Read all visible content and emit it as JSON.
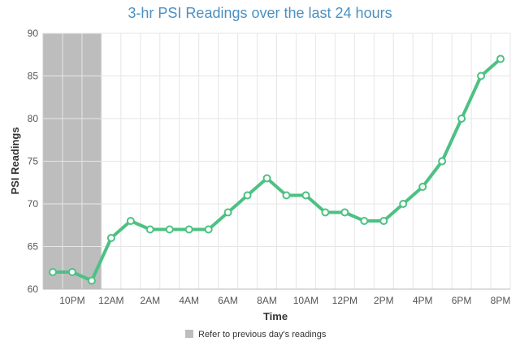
{
  "chart_data": {
    "type": "line",
    "title": "3-hr PSI Readings over the last 24 hours",
    "xlabel": "Time",
    "ylabel": "PSI Readings",
    "ylim": [
      60,
      90
    ],
    "yticks": [
      60,
      65,
      70,
      75,
      80,
      85,
      90
    ],
    "x": [
      "9PM",
      "10PM",
      "11PM",
      "12AM",
      "1AM",
      "2AM",
      "3AM",
      "4AM",
      "5AM",
      "6AM",
      "7AM",
      "8AM",
      "9AM",
      "10AM",
      "11AM",
      "12PM",
      "1PM",
      "2PM",
      "3PM",
      "4PM",
      "5PM",
      "6PM",
      "7PM",
      "8PM"
    ],
    "xtick_labels": [
      "10PM",
      "12AM",
      "2AM",
      "4AM",
      "6AM",
      "8AM",
      "10AM",
      "12PM",
      "2PM",
      "4PM",
      "6PM",
      "8PM"
    ],
    "series": [
      {
        "values": [
          62,
          62,
          61,
          66,
          68,
          67,
          67,
          67,
          67,
          69,
          71,
          73,
          71,
          71,
          69,
          69,
          68,
          68,
          70,
          72,
          75,
          80,
          85,
          87
        ]
      }
    ],
    "shaded_region": {
      "from": "9PM",
      "to": "11PM",
      "label": "Refer to previous day's readings"
    },
    "legend": {
      "position": "bottom",
      "entries": [
        "Refer to previous day's readings"
      ]
    },
    "grid": true,
    "colors": {
      "line": "#4dc183",
      "shade": "#bdbdbd",
      "title": "#4a90c2",
      "grid": "#e6e6e6"
    }
  }
}
